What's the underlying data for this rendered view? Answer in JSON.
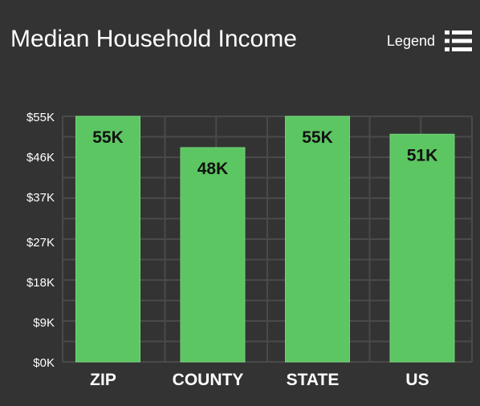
{
  "header": {
    "title": "Median Household Income",
    "legend_label": "Legend",
    "legend_icon": "list-icon"
  },
  "colors": {
    "background": "#333333",
    "bar": "#5cc662",
    "bar_edge": "#76d37b",
    "grid": "#4a4a4a",
    "text": "#ffffff",
    "data_label": "#111111"
  },
  "chart_data": {
    "type": "bar",
    "title": "Median Household Income",
    "categories": [
      "ZIP",
      "COUNTY",
      "STATE",
      "US"
    ],
    "values": [
      55,
      48,
      55,
      51
    ],
    "data_labels": [
      "55K",
      "48K",
      "55K",
      "51K"
    ],
    "y_ticks": [
      0,
      9,
      18,
      27,
      37,
      46,
      55
    ],
    "y_tick_labels": [
      "$0K",
      "$9K",
      "$18K",
      "$27K",
      "$37K",
      "$46K",
      "$55K"
    ],
    "ylim": [
      0,
      55
    ],
    "xlabel": "",
    "ylabel": "",
    "grid": true,
    "legend": "hidden"
  }
}
